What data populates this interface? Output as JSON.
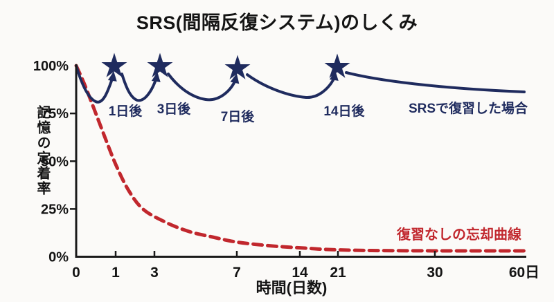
{
  "title": "SRS(間隔反復システム)のしくみ",
  "y_axis": {
    "label": "記憶の定着率",
    "ticks": [
      {
        "value": 100,
        "label": "100%"
      },
      {
        "value": 75,
        "label": "75%"
      },
      {
        "value": 50,
        "label": "50%"
      },
      {
        "value": 25,
        "label": "25%"
      },
      {
        "value": 0,
        "label": "0%"
      }
    ]
  },
  "x_axis": {
    "label": "時間(日数)",
    "ticks": [
      {
        "day": 0,
        "label": "0"
      },
      {
        "day": 1,
        "label": "1"
      },
      {
        "day": 3,
        "label": "3"
      },
      {
        "day": 7,
        "label": "7"
      },
      {
        "day": 14,
        "label": "14"
      },
      {
        "day": 21,
        "label": "21"
      },
      {
        "day": 30,
        "label": "30"
      },
      {
        "day": 60,
        "label": "60日"
      }
    ]
  },
  "annotations": {
    "review_labels": [
      "1日後",
      "3日後",
      "7日後",
      "14日後"
    ],
    "srs_label": "SRSで復習した場合",
    "forgetting_label": "復習なしの忘却曲線"
  },
  "colors": {
    "navy": "#1f2b5e",
    "red": "#c1272d",
    "axis": "#1a1a1a",
    "text": "#141414",
    "background": "#fbfaf8"
  },
  "chart_data": {
    "type": "line",
    "title": "SRS(間隔反復システム)のしくみ",
    "xlabel": "時間(日数)",
    "ylabel": "記憶の定着率",
    "ylim": [
      0,
      100
    ],
    "x_scale": "non-linear compressed day axis",
    "x_ticks_days": [
      0,
      1,
      3,
      7,
      14,
      21,
      30,
      60
    ],
    "series": [
      {
        "name": "SRSで復習した場合",
        "style": "solid",
        "color": "#1f2b5e",
        "marker": "star-at-each-review",
        "review_days": [
          1,
          3,
          7,
          14
        ],
        "review_labels": [
          "1日後",
          "3日後",
          "7日後",
          "14日後"
        ],
        "points": [
          [
            0,
            100
          ],
          [
            0.6,
            82
          ],
          [
            1,
            100
          ],
          [
            2,
            82
          ],
          [
            3,
            100
          ],
          [
            5,
            81
          ],
          [
            7,
            100
          ],
          [
            11,
            82
          ],
          [
            14,
            100
          ],
          [
            30,
            92
          ],
          [
            60,
            86
          ]
        ]
      },
      {
        "name": "復習なしの忘却曲線",
        "style": "dashed",
        "color": "#c1272d",
        "points": [
          [
            0,
            100
          ],
          [
            1,
            47
          ],
          [
            3,
            22
          ],
          [
            7,
            8
          ],
          [
            14,
            5
          ],
          [
            21,
            4.5
          ],
          [
            30,
            3.5
          ],
          [
            60,
            3
          ]
        ]
      }
    ],
    "legend_position": "inline annotations on curves"
  }
}
